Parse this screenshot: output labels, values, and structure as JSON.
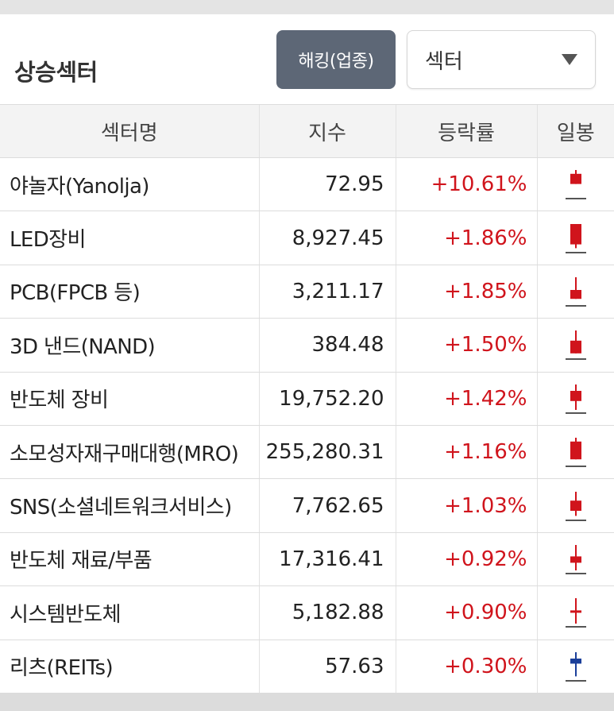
{
  "header": {
    "title": "상승섹터",
    "hacking_button": "해킹(업종)",
    "select_value": "섹터"
  },
  "table": {
    "columns": [
      "섹터명",
      "지수",
      "등락률",
      "일봉"
    ],
    "rows": [
      {
        "name": "야놀자(Yanolja)",
        "index": "72.95",
        "change": "+10.61%",
        "candle": {
          "color": "#d0141c",
          "open": 0.45,
          "close": 0.85,
          "low": 0.45,
          "high": 1.0
        }
      },
      {
        "name": "LED장비",
        "index": "8,927.45",
        "change": "+1.86%",
        "candle": {
          "color": "#d0141c",
          "open": 0.2,
          "close": 1.0,
          "low": 0.05,
          "high": 1.0
        }
      },
      {
        "name": "PCB(FPCB 등)",
        "index": "3,211.17",
        "change": "+1.85%",
        "candle": {
          "color": "#d0141c",
          "open": 0.15,
          "close": 0.5,
          "low": 0.15,
          "high": 1.0
        }
      },
      {
        "name": "3D 낸드(NAND)",
        "index": "384.48",
        "change": "+1.50%",
        "candle": {
          "color": "#d0141c",
          "open": 0.1,
          "close": 0.6,
          "low": 0.1,
          "high": 1.0
        }
      },
      {
        "name": "반도체 장비",
        "index": "19,752.20",
        "change": "+1.42%",
        "candle": {
          "color": "#d0141c",
          "open": 0.35,
          "close": 0.75,
          "low": 0.0,
          "high": 1.0
        }
      },
      {
        "name": "소모성자재구매대행(MRO)",
        "index": "255,280.31",
        "change": "+1.16%",
        "candle": {
          "color": "#d0141c",
          "open": 0.15,
          "close": 0.85,
          "low": 0.15,
          "high": 1.0
        }
      },
      {
        "name": "SNS(소셜네트워크서비스)",
        "index": "7,762.65",
        "change": "+1.03%",
        "candle": {
          "color": "#d0141c",
          "open": 0.25,
          "close": 0.65,
          "low": 0.05,
          "high": 1.0
        }
      },
      {
        "name": "반도체 재료/부품",
        "index": "17,316.41",
        "change": "+0.92%",
        "candle": {
          "color": "#d0141c",
          "open": 0.3,
          "close": 0.55,
          "low": 0.0,
          "high": 1.0
        }
      },
      {
        "name": "시스템반도체",
        "index": "5,182.88",
        "change": "+0.90%",
        "candle": {
          "color": "#d0141c",
          "open": 0.45,
          "close": 0.52,
          "low": 0.0,
          "high": 1.0
        }
      },
      {
        "name": "리츠(REITs)",
        "index": "57.63",
        "change": "+0.30%",
        "candle": {
          "color": "#1b3f9a",
          "open": 0.75,
          "close": 0.55,
          "low": 0.05,
          "high": 1.0
        }
      }
    ]
  }
}
